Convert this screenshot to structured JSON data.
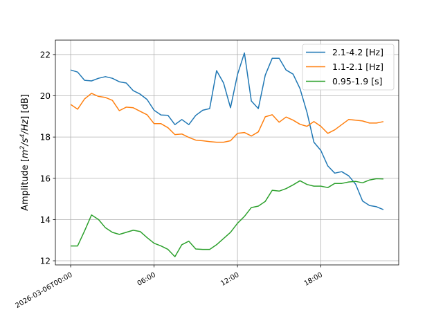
{
  "chart_data": {
    "type": "line",
    "title": "",
    "xlabel": "",
    "ylabel": {
      "prefix": "Amplitude [",
      "m": "m",
      "m_sup": "2",
      "mid": "/",
      "s": "s",
      "s_sup": "4",
      "suffix_italic": "/Hz",
      "suffix": "] [dB]"
    },
    "xlim_hours": [
      -1.1,
      23.6
    ],
    "ylim": [
      11.8,
      22.7
    ],
    "grid": true,
    "legend_position": "top-right",
    "xticks": [
      {
        "hour": 0,
        "label": "2026-03-06T00:00"
      },
      {
        "hour": 6,
        "label": "06:00"
      },
      {
        "hour": 12,
        "label": "12:00"
      },
      {
        "hour": 18,
        "label": "18:00"
      }
    ],
    "yticks": [
      {
        "value": 12,
        "label": "12"
      },
      {
        "value": 14,
        "label": "14"
      },
      {
        "value": 16,
        "label": "16"
      },
      {
        "value": 18,
        "label": "18"
      },
      {
        "value": 20,
        "label": "20"
      },
      {
        "value": 22,
        "label": "22"
      }
    ],
    "x": [
      "00:00",
      "00:30",
      "01:00",
      "01:30",
      "02:00",
      "02:30",
      "03:00",
      "03:30",
      "04:00",
      "04:30",
      "05:00",
      "05:30",
      "06:00",
      "06:30",
      "07:00",
      "07:30",
      "08:00",
      "08:30",
      "09:00",
      "09:30",
      "10:00",
      "10:30",
      "11:00",
      "11:30",
      "12:00",
      "12:30",
      "13:00",
      "13:30",
      "14:00",
      "14:30",
      "15:00",
      "15:30",
      "16:00",
      "16:30",
      "17:00",
      "17:30",
      "18:00",
      "18:30",
      "19:00",
      "19:30",
      "20:00",
      "20:30",
      "21:00",
      "21:30",
      "22:00",
      "22:30",
      "23:00"
    ],
    "series": [
      {
        "name": "2.1-4.2 [Hz]",
        "color": "#1f77b4",
        "values": [
          21.25,
          21.15,
          20.75,
          20.72,
          20.85,
          20.93,
          20.85,
          20.68,
          20.62,
          20.25,
          20.08,
          19.82,
          19.3,
          19.07,
          19.05,
          18.6,
          18.85,
          18.6,
          19.05,
          19.3,
          19.38,
          21.22,
          20.62,
          19.42,
          21.03,
          22.08,
          19.75,
          19.38,
          21.0,
          21.82,
          21.82,
          21.25,
          21.05,
          20.35,
          19.2,
          17.75,
          17.35,
          16.6,
          16.25,
          16.32,
          16.12,
          15.72,
          14.9,
          14.68,
          14.62,
          14.48,
          null
        ]
      },
      {
        "name": "1.1-2.1 [Hz]",
        "color": "#ff7f0e",
        "values": [
          19.58,
          19.35,
          19.85,
          20.12,
          19.97,
          19.92,
          19.78,
          19.28,
          19.45,
          19.42,
          19.25,
          19.08,
          18.65,
          18.65,
          18.45,
          18.12,
          18.15,
          17.98,
          17.85,
          17.82,
          17.78,
          17.75,
          17.75,
          17.82,
          18.18,
          18.22,
          18.05,
          18.25,
          18.98,
          19.08,
          18.72,
          18.97,
          18.82,
          18.62,
          18.52,
          18.75,
          18.52,
          18.18,
          18.35,
          18.6,
          18.85,
          18.82,
          18.78,
          18.68,
          18.68,
          18.75,
          null
        ]
      },
      {
        "name": "0.95-1.9 [s]",
        "color": "#2ca02c",
        "values": [
          12.72,
          12.72,
          13.45,
          14.22,
          14.0,
          13.6,
          13.38,
          13.28,
          13.38,
          13.48,
          13.42,
          13.12,
          12.85,
          12.72,
          12.55,
          12.2,
          12.78,
          12.95,
          12.57,
          12.55,
          12.55,
          12.78,
          13.08,
          13.38,
          13.82,
          14.15,
          14.58,
          14.65,
          14.88,
          15.42,
          15.38,
          15.5,
          15.68,
          15.88,
          15.7,
          15.62,
          15.62,
          15.55,
          15.75,
          15.75,
          15.82,
          15.85,
          15.78,
          15.92,
          15.98,
          15.97,
          null
        ]
      }
    ]
  }
}
